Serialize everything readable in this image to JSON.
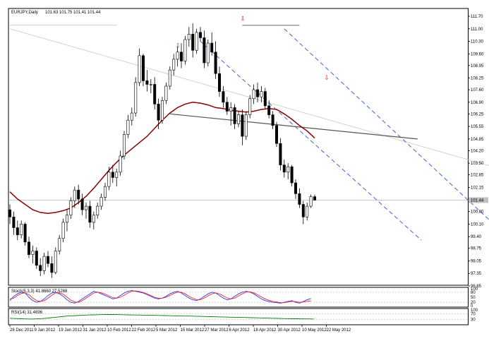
{
  "chart_data": [
    {
      "type": "candlestick",
      "symbol_label": "EURJPY,Daily",
      "ohlc_label": "101.63 101.75 101.41 101.44",
      "last_price_label": "101.44",
      "last_price": 101.44,
      "y_ticks": [
        "111.70",
        "111.00",
        "110.30",
        "109.60",
        "108.95",
        "108.25",
        "107.60",
        "106.90",
        "106.25",
        "105.55",
        "104.85",
        "104.20",
        "103.50",
        "102.85",
        "102.15",
        "101.45",
        "100.80",
        "100.10",
        "99.40",
        "98.75",
        "98.05",
        "97.35",
        "96.65"
      ],
      "x_ticks": [
        "28 Dec 2011",
        "9 Jan 2012",
        "19 Jan 2012",
        "31 Jan 2012",
        "10 Feb 2012",
        "22 Feb 2012",
        "5 Mar 2012",
        "15 Mar 2012",
        "27 Mar 2012",
        "6 Apr 2012",
        "18 Apr 2012",
        "30 Apr 2012",
        "10 May 2012",
        "22 May 2012"
      ],
      "ylim": [
        96.65,
        111.7
      ],
      "grid": false,
      "candles": [
        [
          100.9,
          101.2,
          100.1,
          100.5
        ],
        [
          100.5,
          100.8,
          99.5,
          99.9
        ],
        [
          99.9,
          100.3,
          99.2,
          99.5
        ],
        [
          99.5,
          100.3,
          99.3,
          100.1
        ],
        [
          100.1,
          100.2,
          98.9,
          99.1
        ],
        [
          99.1,
          99.4,
          98.2,
          98.4
        ],
        [
          98.4,
          98.9,
          97.9,
          98.6
        ],
        [
          98.6,
          98.8,
          97.6,
          97.8
        ],
        [
          97.8,
          98.2,
          97.2,
          97.5
        ],
        [
          97.5,
          98.5,
          97.3,
          98.3
        ],
        [
          98.3,
          98.6,
          97.7,
          97.9
        ],
        [
          97.9,
          98.3,
          97.1,
          97.4
        ],
        [
          97.4,
          98.8,
          97.3,
          98.6
        ],
        [
          98.6,
          99.5,
          98.4,
          99.3
        ],
        [
          99.3,
          100.4,
          99.1,
          100.2
        ],
        [
          100.2,
          100.9,
          99.7,
          100.6
        ],
        [
          100.6,
          101.6,
          100.4,
          101.4
        ],
        [
          101.4,
          102.2,
          101.0,
          102.0
        ],
        [
          102.0,
          102.3,
          101.2,
          101.5
        ],
        [
          101.5,
          101.8,
          100.6,
          100.9
        ],
        [
          100.9,
          101.3,
          100.4,
          101.1
        ],
        [
          101.1,
          101.4,
          99.9,
          100.2
        ],
        [
          100.2,
          100.8,
          99.8,
          100.6
        ],
        [
          100.6,
          101.3,
          100.4,
          101.1
        ],
        [
          101.1,
          101.8,
          100.9,
          101.6
        ],
        [
          101.6,
          102.4,
          101.4,
          102.2
        ],
        [
          102.2,
          103.3,
          102.0,
          103.0
        ],
        [
          103.0,
          103.4,
          102.4,
          102.7
        ],
        [
          102.7,
          103.2,
          102.2,
          103.0
        ],
        [
          103.0,
          104.2,
          102.8,
          103.9
        ],
        [
          103.9,
          105.3,
          103.7,
          105.1
        ],
        [
          105.1,
          106.2,
          104.9,
          105.9
        ],
        [
          105.9,
          106.6,
          105.6,
          106.3
        ],
        [
          106.3,
          108.3,
          106.1,
          108.0
        ],
        [
          108.0,
          109.9,
          107.8,
          109.5
        ],
        [
          109.5,
          109.6,
          107.8,
          108.1
        ],
        [
          108.1,
          108.7,
          107.5,
          107.9
        ],
        [
          107.9,
          108.2,
          107.4,
          107.9
        ],
        [
          107.9,
          108.3,
          106.5,
          106.8
        ],
        [
          106.8,
          107.1,
          105.4,
          105.9
        ],
        [
          105.9,
          107.2,
          105.7,
          107.0
        ],
        [
          107.0,
          108.0,
          106.8,
          107.8
        ],
        [
          107.8,
          108.9,
          107.6,
          108.7
        ],
        [
          108.7,
          109.6,
          108.4,
          109.3
        ],
        [
          109.3,
          110.0,
          108.9,
          109.7
        ],
        [
          109.7,
          110.2,
          108.8,
          109.2
        ],
        [
          109.2,
          110.6,
          109.0,
          110.4
        ],
        [
          110.4,
          111.1,
          110.0,
          110.7
        ],
        [
          110.7,
          111.3,
          109.4,
          109.8
        ],
        [
          109.8,
          111.0,
          109.6,
          110.8
        ],
        [
          110.8,
          111.1,
          110.3,
          110.5
        ],
        [
          110.5,
          110.9,
          108.8,
          109.1
        ],
        [
          109.1,
          110.4,
          108.9,
          110.2
        ],
        [
          110.2,
          110.8,
          109.5,
          109.7
        ],
        [
          109.7,
          110.3,
          108.2,
          108.5
        ],
        [
          108.5,
          108.9,
          107.2,
          107.5
        ],
        [
          107.5,
          107.8,
          106.6,
          106.9
        ],
        [
          106.9,
          107.2,
          106.2,
          106.4
        ],
        [
          106.4,
          106.9,
          105.6,
          106.6
        ],
        [
          106.6,
          106.8,
          105.4,
          105.7
        ],
        [
          105.7,
          106.4,
          105.5,
          106.2
        ],
        [
          106.2,
          106.5,
          104.5,
          105.0
        ],
        [
          105.0,
          106.4,
          104.8,
          106.2
        ],
        [
          106.2,
          107.3,
          106.0,
          107.1
        ],
        [
          107.1,
          107.9,
          106.8,
          107.6
        ],
        [
          107.6,
          108.0,
          106.9,
          107.2
        ],
        [
          107.2,
          107.8,
          106.9,
          107.5
        ],
        [
          107.5,
          107.7,
          106.5,
          106.7
        ],
        [
          106.7,
          107.0,
          106.0,
          106.2
        ],
        [
          106.2,
          106.4,
          105.4,
          105.6
        ],
        [
          105.6,
          105.8,
          104.4,
          104.6
        ],
        [
          104.6,
          104.9,
          103.1,
          103.4
        ],
        [
          103.4,
          103.7,
          102.7,
          103.0
        ],
        [
          103.0,
          103.5,
          102.6,
          103.3
        ],
        [
          103.3,
          103.4,
          102.2,
          102.4
        ],
        [
          102.4,
          102.6,
          101.5,
          101.8
        ],
        [
          101.8,
          102.1,
          101.0,
          101.2
        ],
        [
          101.2,
          101.4,
          100.1,
          100.5
        ],
        [
          100.5,
          101.3,
          100.3,
          101.1
        ],
        [
          101.1,
          101.75,
          101.0,
          101.63
        ],
        [
          101.63,
          101.75,
          101.41,
          101.44
        ]
      ],
      "moving_average": [
        101.9,
        101.5,
        101.2,
        100.9,
        100.75,
        100.7,
        100.75,
        100.85,
        101.0,
        101.3,
        101.65,
        102.1,
        102.6,
        103.1,
        103.55,
        103.95,
        104.3,
        104.65,
        105.0,
        105.45,
        105.9,
        106.3,
        106.6,
        106.8,
        106.9,
        106.85,
        106.75,
        106.6,
        106.55,
        106.45,
        106.4,
        106.35,
        106.4,
        106.5,
        106.55,
        106.5,
        106.25,
        105.95,
        105.6,
        105.3,
        104.9
      ],
      "ma_start_index": 0,
      "ma_step": 2,
      "resistance_level_left": 111.2,
      "resistance_level_right": 111.2,
      "neckline": [
        [
          42,
          106.25
        ],
        [
          107,
          104.85
        ]
      ],
      "channel_upper": [
        [
          72,
          111.0
        ],
        [
          127,
          100.1
        ]
      ],
      "channel_lower": [
        [
          50,
          110.3
        ],
        [
          108,
          99.2
        ]
      ],
      "fib_line": [
        [
          0,
          111.0
        ],
        [
          140,
          102.5
        ]
      ],
      "arrows": [
        {
          "index": 44,
          "price": 109.95,
          "label": "⇩"
        },
        {
          "index": 61,
          "price": 111.45,
          "label": "⇩"
        },
        {
          "index": 83,
          "price": 108.15,
          "label": "⇩"
        }
      ]
    },
    {
      "type": "line",
      "indicator_label": "Stoch(5,3,3) 41.8660 27.5268",
      "y_ticks": [
        "100",
        "80",
        "50",
        "20",
        "0"
      ],
      "ylim": [
        0,
        100
      ],
      "series": [
        {
          "color": "#1e3cff",
          "values": [
            30,
            55,
            70,
            80,
            75,
            50,
            30,
            20,
            25,
            40,
            60,
            75,
            80,
            70,
            55,
            35,
            20,
            15,
            25,
            40,
            55,
            70,
            85,
            80,
            70,
            60,
            50,
            40,
            45,
            60,
            75,
            85,
            90,
            85,
            80,
            75,
            65,
            55,
            45,
            40,
            45,
            55,
            70,
            80,
            85,
            75,
            60,
            45,
            35,
            30,
            40,
            55,
            70,
            80,
            75,
            60,
            45,
            35,
            40,
            55,
            70,
            80,
            85,
            80,
            70,
            55,
            40,
            30,
            25,
            20,
            18,
            15,
            20,
            25,
            30,
            20,
            15,
            25,
            35,
            42
          ]
        },
        {
          "color": "#ff2020",
          "values": [
            40,
            45,
            60,
            72,
            76,
            65,
            45,
            30,
            25,
            30,
            45,
            62,
            75,
            76,
            68,
            50,
            33,
            22,
            20,
            30,
            45,
            60,
            75,
            80,
            76,
            68,
            58,
            48,
            44,
            50,
            62,
            75,
            85,
            87,
            84,
            78,
            70,
            60,
            50,
            44,
            44,
            50,
            60,
            72,
            80,
            80,
            70,
            56,
            44,
            36,
            35,
            45,
            58,
            70,
            76,
            70,
            58,
            46,
            40,
            45,
            58,
            70,
            80,
            82,
            76,
            65,
            52,
            40,
            32,
            26,
            22,
            18,
            18,
            22,
            26,
            24,
            20,
            22,
            26,
            28
          ]
        }
      ]
    },
    {
      "type": "line",
      "indicator_label": "RSI(14) 31.4696",
      "y_ticks": [
        "100",
        "70",
        "30"
      ],
      "ylim": [
        0,
        100
      ],
      "series": [
        {
          "color": "#008000",
          "values": [
            38,
            36,
            34,
            33,
            32,
            33,
            35,
            38,
            42,
            46,
            50,
            54,
            56,
            58,
            60,
            62,
            63,
            64,
            65,
            66,
            66,
            65,
            64,
            63,
            62,
            62,
            61,
            60,
            60,
            59,
            58,
            57,
            56,
            55,
            54,
            54,
            53,
            52,
            51,
            50,
            49,
            48,
            47,
            46,
            45,
            44,
            43,
            42,
            41,
            40,
            39,
            38,
            37,
            36,
            35,
            34,
            34,
            33,
            33,
            32
          ]
        }
      ]
    }
  ]
}
